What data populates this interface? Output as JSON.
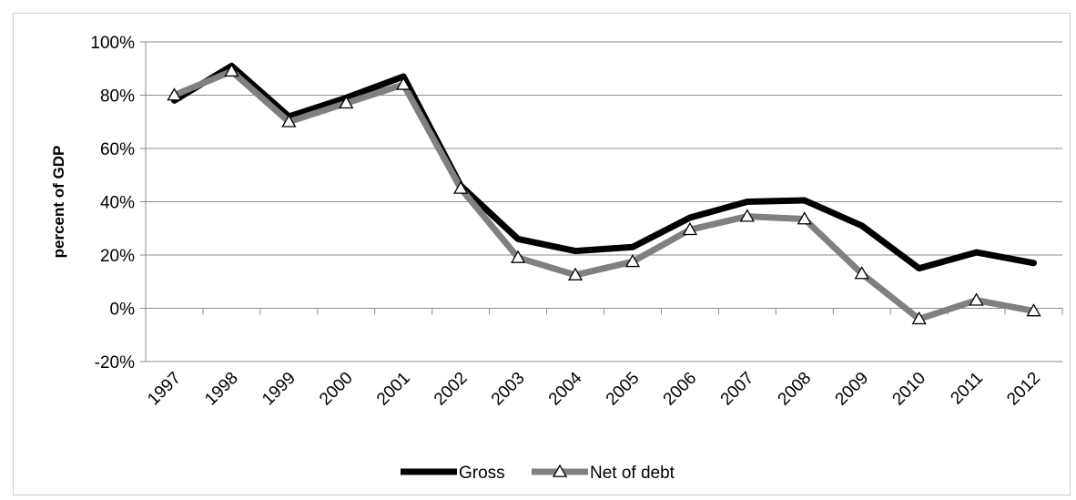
{
  "chart_data": {
    "type": "line",
    "title": "",
    "xlabel": "",
    "ylabel": "percent of GDP",
    "x": [
      "1997",
      "1998",
      "1999",
      "2000",
      "2001",
      "2002",
      "2003",
      "2004",
      "2005",
      "2006",
      "2007",
      "2008",
      "2009",
      "2010",
      "2011",
      "2012"
    ],
    "ylim": [
      -20,
      100
    ],
    "yticks": [
      -20,
      0,
      20,
      40,
      60,
      80,
      100
    ],
    "ytick_labels": [
      "-20%",
      "0%",
      "20%",
      "40%",
      "60%",
      "80%",
      "100%"
    ],
    "grid": true,
    "legend_position": "bottom",
    "series": [
      {
        "name": "Gross",
        "color": "#000000",
        "marker": "none",
        "values": [
          78,
          91,
          72,
          79,
          87,
          46,
          26,
          21.5,
          23,
          34,
          40,
          40.5,
          31,
          15,
          21,
          17
        ]
      },
      {
        "name": "Net of debt",
        "color": "#808080",
        "marker": "triangle",
        "values": [
          80,
          89,
          70,
          77,
          84,
          45,
          19,
          12.5,
          17.5,
          29.5,
          34.5,
          33.5,
          13,
          -4,
          3,
          -1
        ]
      }
    ]
  }
}
